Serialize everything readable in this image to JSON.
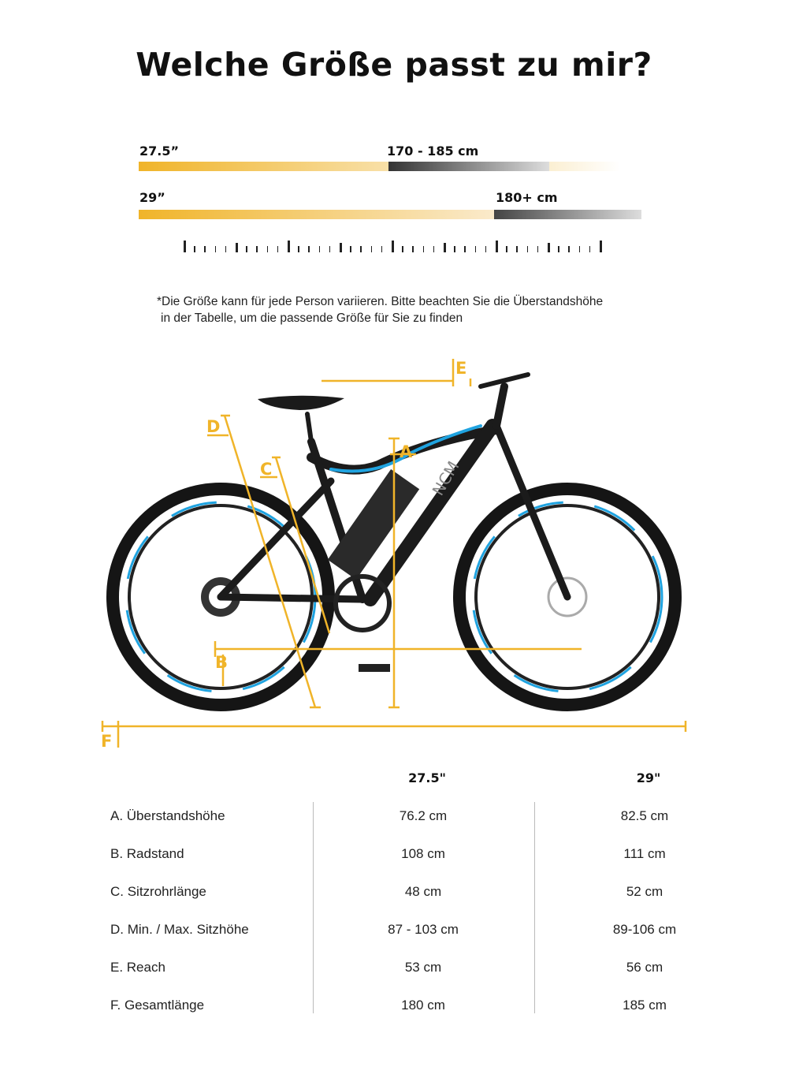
{
  "title": "Welche Größe passt zu mir?",
  "size_bars": [
    {
      "size": "27.5”",
      "range": "170 - 185 cm"
    },
    {
      "size": "29”",
      "range": "180+ cm"
    }
  ],
  "note": {
    "line1": "*Die Größe kann für jede Person variieren. Bitte beachten Sie die Überstandshöhe",
    "line2": "in der Tabelle, um die passende Größe für Sie zu finden"
  },
  "diagram": {
    "labels": {
      "A": "A",
      "B": "B",
      "C": "C",
      "D": "D",
      "E": "E",
      "F": "F"
    },
    "brand_text": "NCM",
    "accent_color": "#F0B429",
    "frame_accent": "#1FA3E0"
  },
  "table": {
    "headers": [
      "27.5\"",
      "29\""
    ],
    "rows": [
      {
        "label": "A. Überstandshöhe",
        "v1": "76.2 cm",
        "v2": "82.5 cm"
      },
      {
        "label": "B. Radstand",
        "v1": "108 cm",
        "v2": "111 cm"
      },
      {
        "label": "C. Sitzrohrlänge",
        "v1": "48 cm",
        "v2": "52 cm"
      },
      {
        "label": "D. Min. / Max. Sitzhöhe",
        "v1": "87 - 103 cm",
        "v2": "89-106 cm"
      },
      {
        "label": "E. Reach",
        "v1": "53 cm",
        "v2": "56 cm"
      },
      {
        "label": "F. Gesamtlänge",
        "v1": "180 cm",
        "v2": "185 cm"
      }
    ]
  }
}
